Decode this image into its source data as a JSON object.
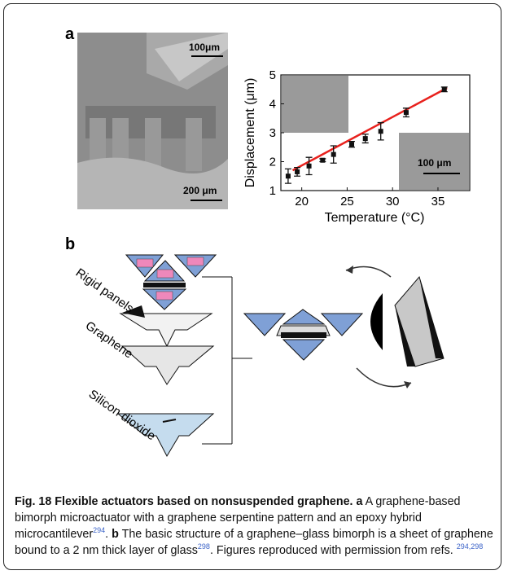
{
  "chart_data": {
    "type": "scatter",
    "xlabel": "Temperature (°C)",
    "ylabel": "Displacement (μm)",
    "x": [
      18.5,
      19.5,
      20.8,
      22.3,
      23.5,
      25.5,
      27,
      28.7,
      31.5,
      35.7
    ],
    "series": [
      {
        "color": "#111111",
        "values": [
          1.5,
          1.65,
          1.85,
          2.05,
          2.25,
          2.6,
          2.8,
          3.05,
          3.7,
          4.5
        ],
        "errors": [
          0.25,
          0.15,
          0.3,
          0.05,
          0.3,
          0.1,
          0.15,
          0.3,
          0.15,
          0.08
        ]
      }
    ],
    "fit": {
      "color": "#e8211d",
      "x": [
        19,
        36
      ],
      "y": [
        1.7,
        4.55
      ]
    },
    "xlim": [
      17.7,
      38.5
    ],
    "ylim": [
      1,
      5
    ],
    "xticks": [
      20,
      25,
      30,
      35
    ],
    "yticks": [
      1,
      2,
      3,
      4,
      5
    ]
  },
  "panel_a": {
    "label": "a",
    "sem_scale_top": "100μm",
    "sem_scale_bottom": "200 μm",
    "inset_scale": "100 μm"
  },
  "panel_b": {
    "label": "b",
    "layers": [
      "Rigid panels",
      "Graphene",
      "Silicon dioxide"
    ]
  },
  "caption": {
    "title": "Fig. 18 Flexible actuators based on nonsuspended graphene.",
    "a_label": "a",
    "a_text": "A graphene-based bimorph microactuator with a graphene serpentine pattern and an epoxy hybrid microcantilever",
    "a_ref": "294",
    "a_end": ".",
    "b_label": "b",
    "b_text": "The basic structure of a graphene–glass bimorph is a sheet of graphene bound to a 2 nm thick layer of glass",
    "b_ref": "298",
    "b_end": ". Figures reproduced with permission from refs.",
    "final_ref": "294,298"
  }
}
